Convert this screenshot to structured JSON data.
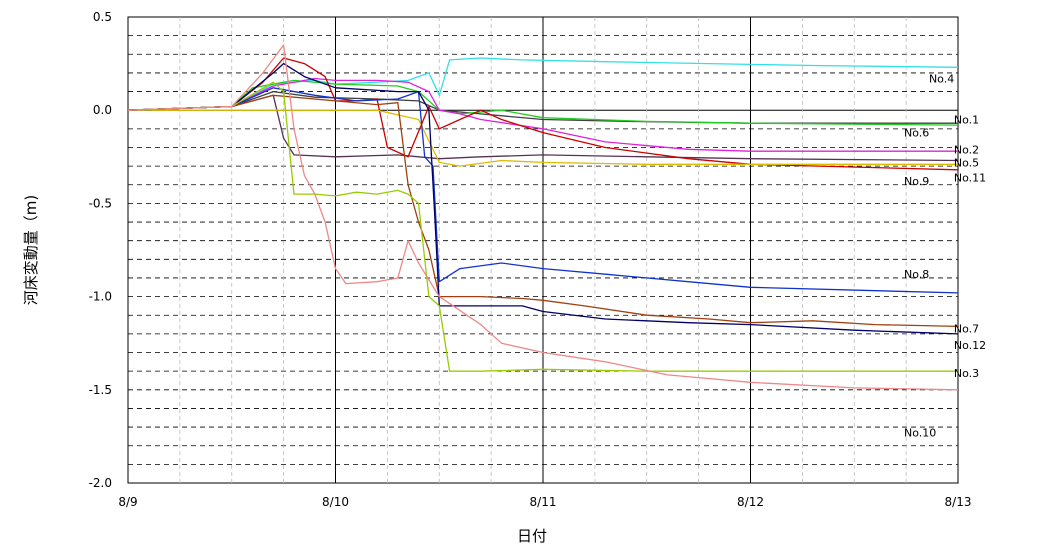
{
  "chart_data": {
    "type": "line",
    "title": "",
    "xlabel": "日付",
    "ylabel": "河床変動量（m)",
    "x_ticks": [
      "8/9",
      "8/10",
      "8/11",
      "8/12",
      "8/13"
    ],
    "x_range_days": [
      0,
      4
    ],
    "ylim": [
      -2.0,
      0.5
    ],
    "y_ticks": [
      "0.5",
      "0.0",
      "-0.5",
      "-1.0",
      "-1.5",
      "-2.0"
    ],
    "y_tick_values": [
      0.5,
      0.0,
      -0.5,
      -1.0,
      -1.5,
      -2.0
    ],
    "grid": "dashed horizontal every 0.1, vertical every 0.25 day",
    "series": [
      {
        "name": "No.4",
        "color": "#33dfe8",
        "label_x": 3.86,
        "label_y": 0.17,
        "points": [
          [
            0,
            0
          ],
          [
            0.5,
            0.02
          ],
          [
            0.7,
            0.14
          ],
          [
            0.9,
            0.16
          ],
          [
            1.0,
            0.14
          ],
          [
            1.2,
            0.15
          ],
          [
            1.35,
            0.16
          ],
          [
            1.45,
            0.2
          ],
          [
            1.5,
            0.08
          ],
          [
            1.55,
            0.27
          ],
          [
            1.7,
            0.28
          ],
          [
            1.9,
            0.27
          ],
          [
            2.3,
            0.26
          ],
          [
            2.8,
            0.25
          ],
          [
            3.3,
            0.24
          ],
          [
            4,
            0.23
          ]
        ]
      },
      {
        "name": "No.1",
        "color": "#404040",
        "label_x": 3.98,
        "label_y": -0.05,
        "points": [
          [
            0,
            0
          ],
          [
            0.5,
            0.02
          ],
          [
            0.7,
            0.1
          ],
          [
            0.9,
            0.07
          ],
          [
            1.2,
            0.06
          ],
          [
            1.4,
            0.05
          ],
          [
            1.5,
            0.0
          ],
          [
            1.7,
            -0.02
          ],
          [
            2.0,
            -0.05
          ],
          [
            2.4,
            -0.06
          ],
          [
            3,
            -0.07
          ],
          [
            4,
            -0.07
          ]
        ]
      },
      {
        "name": "No.6",
        "color": "#22cc22",
        "label_x": 3.74,
        "label_y": -0.12,
        "points": [
          [
            0,
            0
          ],
          [
            0.5,
            0.02
          ],
          [
            0.6,
            0.12
          ],
          [
            0.8,
            0.16
          ],
          [
            1.0,
            0.14
          ],
          [
            1.3,
            0.13
          ],
          [
            1.4,
            0.1
          ],
          [
            1.5,
            0.0
          ],
          [
            1.6,
            -0.02
          ],
          [
            1.8,
            0.0
          ],
          [
            2.0,
            -0.04
          ],
          [
            2.5,
            -0.06
          ],
          [
            3,
            -0.07
          ],
          [
            4,
            -0.08
          ]
        ]
      },
      {
        "name": "No.2",
        "color": "#dd22dd",
        "label_x": 3.98,
        "label_y": -0.21,
        "points": [
          [
            0,
            0
          ],
          [
            0.5,
            0.02
          ],
          [
            0.7,
            0.13
          ],
          [
            0.9,
            0.17
          ],
          [
            1.0,
            0.16
          ],
          [
            1.2,
            0.16
          ],
          [
            1.35,
            0.15
          ],
          [
            1.45,
            0.1
          ],
          [
            1.5,
            0.0
          ],
          [
            1.6,
            -0.02
          ],
          [
            1.7,
            -0.05
          ],
          [
            2.0,
            -0.1
          ],
          [
            2.3,
            -0.17
          ],
          [
            2.7,
            -0.21
          ],
          [
            3,
            -0.22
          ],
          [
            4,
            -0.22
          ]
        ]
      },
      {
        "name": "No.5",
        "color": "#553355",
        "label_x": 3.98,
        "label_y": -0.28,
        "points": [
          [
            0,
            0
          ],
          [
            0.5,
            0.02
          ],
          [
            0.7,
            0.08
          ],
          [
            0.75,
            -0.15
          ],
          [
            0.8,
            -0.24
          ],
          [
            1.0,
            -0.25
          ],
          [
            1.3,
            -0.24
          ],
          [
            1.4,
            -0.25
          ],
          [
            1.5,
            -0.26
          ],
          [
            1.7,
            -0.25
          ],
          [
            2.0,
            -0.24
          ],
          [
            2.5,
            -0.25
          ],
          [
            3,
            -0.26
          ],
          [
            4,
            -0.27
          ]
        ]
      },
      {
        "name": "No.11",
        "color": "#cc0000",
        "label_x": 3.98,
        "label_y": -0.36,
        "points": [
          [
            0,
            0
          ],
          [
            0.5,
            0.02
          ],
          [
            0.65,
            0.15
          ],
          [
            0.75,
            0.28
          ],
          [
            0.85,
            0.25
          ],
          [
            0.95,
            0.18
          ],
          [
            1.0,
            0.05
          ],
          [
            1.1,
            0.05
          ],
          [
            1.2,
            0.06
          ],
          [
            1.25,
            -0.2
          ],
          [
            1.35,
            -0.25
          ],
          [
            1.45,
            0.02
          ],
          [
            1.5,
            -0.1
          ],
          [
            1.6,
            -0.05
          ],
          [
            1.7,
            0.0
          ],
          [
            1.8,
            -0.05
          ],
          [
            2.0,
            -0.12
          ],
          [
            2.3,
            -0.2
          ],
          [
            2.7,
            -0.26
          ],
          [
            3,
            -0.29
          ],
          [
            4,
            -0.32
          ]
        ]
      },
      {
        "name": "No.9",
        "color": "#ddbb00",
        "label_x": 3.74,
        "label_y": -0.38,
        "points": [
          [
            0,
            0
          ],
          [
            0.5,
            0.0
          ],
          [
            0.8,
            0.0
          ],
          [
            1.2,
            0.0
          ],
          [
            1.4,
            -0.05
          ],
          [
            1.5,
            -0.28
          ],
          [
            1.6,
            -0.3
          ],
          [
            1.8,
            -0.27
          ],
          [
            2.0,
            -0.28
          ],
          [
            2.5,
            -0.29
          ],
          [
            3,
            -0.29
          ],
          [
            4,
            -0.29
          ]
        ]
      },
      {
        "name": "No.8",
        "color": "#1133cc",
        "label_x": 3.74,
        "label_y": -0.88,
        "points": [
          [
            0,
            0
          ],
          [
            0.5,
            0.02
          ],
          [
            0.7,
            0.12
          ],
          [
            0.9,
            0.08
          ],
          [
            1.1,
            0.05
          ],
          [
            1.3,
            0.06
          ],
          [
            1.4,
            0.1
          ],
          [
            1.43,
            -0.25
          ],
          [
            1.47,
            -0.3
          ],
          [
            1.5,
            -0.92
          ],
          [
            1.6,
            -0.85
          ],
          [
            1.8,
            -0.82
          ],
          [
            2.0,
            -0.85
          ],
          [
            2.3,
            -0.88
          ],
          [
            2.7,
            -0.92
          ],
          [
            3,
            -0.95
          ],
          [
            4,
            -0.98
          ]
        ]
      },
      {
        "name": "No.7",
        "color": "#a04010",
        "label_x": 3.98,
        "label_y": -1.17,
        "points": [
          [
            0,
            0
          ],
          [
            0.5,
            0.02
          ],
          [
            0.7,
            0.08
          ],
          [
            1.0,
            0.05
          ],
          [
            1.2,
            0.03
          ],
          [
            1.3,
            0.04
          ],
          [
            1.35,
            -0.4
          ],
          [
            1.4,
            -0.6
          ],
          [
            1.45,
            -0.75
          ],
          [
            1.5,
            -1.0
          ],
          [
            1.7,
            -1.0
          ],
          [
            1.9,
            -1.01
          ],
          [
            2.0,
            -1.02
          ],
          [
            2.2,
            -1.05
          ],
          [
            2.5,
            -1.1
          ],
          [
            2.8,
            -1.12
          ],
          [
            3,
            -1.14
          ],
          [
            3.3,
            -1.13
          ],
          [
            3.6,
            -1.15
          ],
          [
            4,
            -1.16
          ]
        ]
      },
      {
        "name": "No.12",
        "color": "#000066",
        "label_x": 3.98,
        "label_y": -1.26,
        "points": [
          [
            0,
            0
          ],
          [
            0.5,
            0.02
          ],
          [
            0.7,
            0.2
          ],
          [
            0.75,
            0.25
          ],
          [
            0.85,
            0.18
          ],
          [
            1.0,
            0.12
          ],
          [
            1.3,
            0.1
          ],
          [
            1.4,
            0.1
          ],
          [
            1.45,
            0.0
          ],
          [
            1.48,
            -0.6
          ],
          [
            1.5,
            -1.05
          ],
          [
            1.7,
            -1.05
          ],
          [
            1.9,
            -1.05
          ],
          [
            2.0,
            -1.08
          ],
          [
            2.3,
            -1.12
          ],
          [
            2.7,
            -1.14
          ],
          [
            3,
            -1.15
          ],
          [
            3.5,
            -1.18
          ],
          [
            4,
            -1.2
          ]
        ]
      },
      {
        "name": "No.3",
        "color": "#99cc00",
        "label_x": 3.98,
        "label_y": -1.41,
        "points": [
          [
            0,
            0
          ],
          [
            0.5,
            0.02
          ],
          [
            0.7,
            0.15
          ],
          [
            0.75,
            0.1
          ],
          [
            0.8,
            -0.45
          ],
          [
            0.9,
            -0.45
          ],
          [
            1.0,
            -0.46
          ],
          [
            1.1,
            -0.44
          ],
          [
            1.2,
            -0.45
          ],
          [
            1.3,
            -0.43
          ],
          [
            1.35,
            -0.45
          ],
          [
            1.4,
            -0.5
          ],
          [
            1.45,
            -1.0
          ],
          [
            1.5,
            -1.05
          ],
          [
            1.55,
            -1.4
          ],
          [
            1.7,
            -1.4
          ],
          [
            2,
            -1.39
          ],
          [
            2.5,
            -1.4
          ],
          [
            3,
            -1.4
          ],
          [
            4,
            -1.4
          ]
        ]
      },
      {
        "name": "No.10",
        "color": "#ee8888",
        "label_x": 3.74,
        "label_y": -1.73,
        "points": [
          [
            0,
            0
          ],
          [
            0.5,
            0.02
          ],
          [
            0.65,
            0.2
          ],
          [
            0.75,
            0.35
          ],
          [
            0.8,
            -0.1
          ],
          [
            0.85,
            -0.35
          ],
          [
            0.9,
            -0.45
          ],
          [
            0.95,
            -0.6
          ],
          [
            1.0,
            -0.85
          ],
          [
            1.05,
            -0.93
          ],
          [
            1.2,
            -0.92
          ],
          [
            1.3,
            -0.9
          ],
          [
            1.35,
            -0.7
          ],
          [
            1.4,
            -0.82
          ],
          [
            1.5,
            -1.0
          ],
          [
            1.7,
            -1.15
          ],
          [
            1.8,
            -1.25
          ],
          [
            2.0,
            -1.3
          ],
          [
            2.3,
            -1.35
          ],
          [
            2.6,
            -1.42
          ],
          [
            3,
            -1.46
          ],
          [
            3.5,
            -1.49
          ],
          [
            4,
            -1.5
          ]
        ]
      }
    ]
  }
}
